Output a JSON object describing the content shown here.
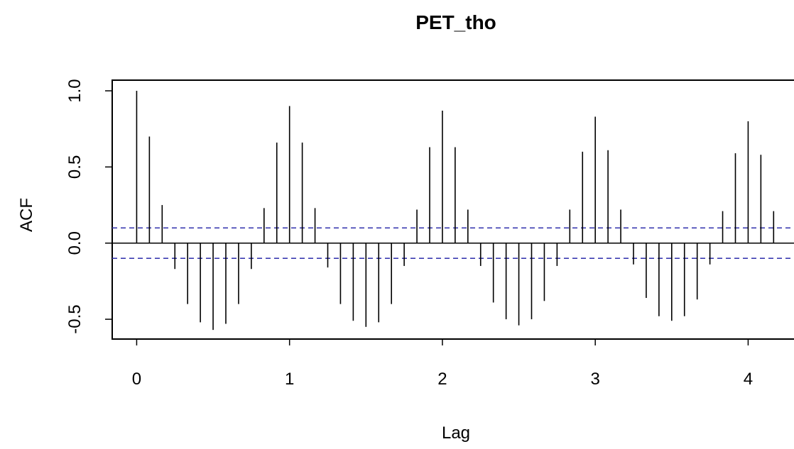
{
  "chart_data": {
    "type": "bar",
    "title": "PET_tho",
    "xlabel": "Lag",
    "ylabel": "ACF",
    "x_ticks": [
      "0",
      "1",
      "2",
      "3",
      "4"
    ],
    "y_ticks": [
      "-0.5",
      "0.0",
      "0.5",
      "1.0"
    ],
    "xlim": [
      -0.16,
      4.3
    ],
    "ylim": [
      -0.63,
      1.07
    ],
    "confidence_band": 0.1,
    "colors": {
      "spike": "#000000",
      "confidence_line": "#3b3bb0",
      "axis": "#000000"
    },
    "lags": [
      0,
      0.0833,
      0.1667,
      0.25,
      0.3333,
      0.4167,
      0.5,
      0.5833,
      0.6667,
      0.75,
      0.8333,
      0.9167,
      1.0,
      1.0833,
      1.1667,
      1.25,
      1.3333,
      1.4167,
      1.5,
      1.5833,
      1.6667,
      1.75,
      1.8333,
      1.9167,
      2.0,
      2.0833,
      2.1667,
      2.25,
      2.3333,
      2.4167,
      2.5,
      2.5833,
      2.6667,
      2.75,
      2.8333,
      2.9167,
      3.0,
      3.0833,
      3.1667,
      3.25,
      3.3333,
      3.4167,
      3.5,
      3.5833,
      3.6667,
      3.75,
      3.8333,
      3.9167,
      4.0,
      4.0833,
      4.1667
    ],
    "acf": [
      1.0,
      0.7,
      0.25,
      -0.17,
      -0.4,
      -0.52,
      -0.57,
      -0.53,
      -0.4,
      -0.17,
      0.23,
      0.66,
      0.9,
      0.66,
      0.23,
      -0.16,
      -0.4,
      -0.51,
      -0.55,
      -0.52,
      -0.4,
      -0.15,
      0.22,
      0.63,
      0.87,
      0.63,
      0.22,
      -0.15,
      -0.39,
      -0.5,
      -0.54,
      -0.5,
      -0.38,
      -0.15,
      0.22,
      0.6,
      0.83,
      0.61,
      0.22,
      -0.14,
      -0.36,
      -0.48,
      -0.51,
      -0.48,
      -0.37,
      -0.14,
      0.21,
      0.59,
      0.8,
      0.58,
      0.21
    ]
  }
}
